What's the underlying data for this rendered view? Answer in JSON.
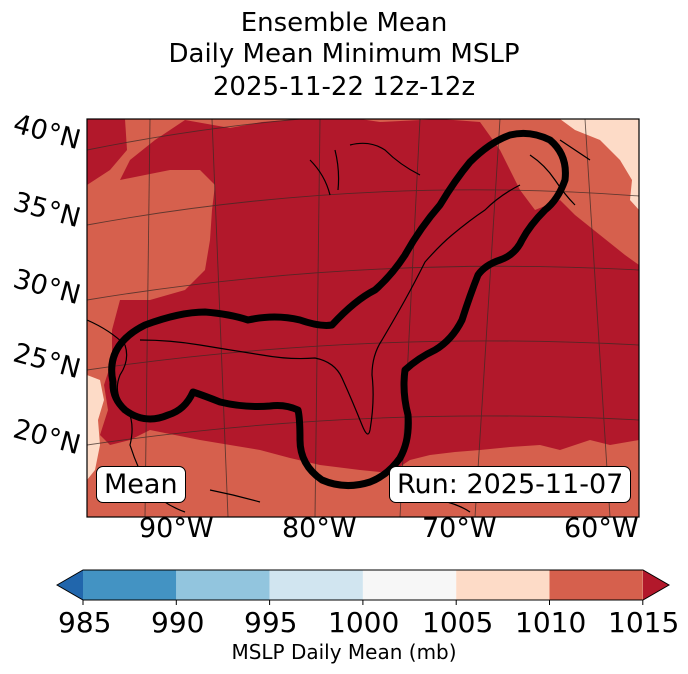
{
  "title": {
    "line1": "Ensemble Mean",
    "line2": "Daily Mean Minimum MSLP",
    "line3": "2025-11-22 12z-12z"
  },
  "map": {
    "lat_labels": [
      "40°N",
      "35°N",
      "30°N",
      "25°N",
      "20°N"
    ],
    "lon_labels": [
      "90°W",
      "80°W",
      "70°W",
      "60°W"
    ],
    "mean_box": "Mean",
    "run_box": "Run: 2025-11-07"
  },
  "colorbar": {
    "ticks": [
      "985",
      "990",
      "995",
      "1000",
      "1005",
      "1010",
      "1015"
    ],
    "label": "MSLP Daily Mean (mb)",
    "colors": [
      "#2166ac",
      "#4393c3",
      "#92c5de",
      "#d1e5f0",
      "#f7f7f7",
      "#fddbc7",
      "#d6604d",
      "#b2182b"
    ]
  },
  "fill_colors": {
    "low": "#fddbc7",
    "mid": "#d6604d",
    "high": "#b2182b",
    "contour": "#000000"
  }
}
